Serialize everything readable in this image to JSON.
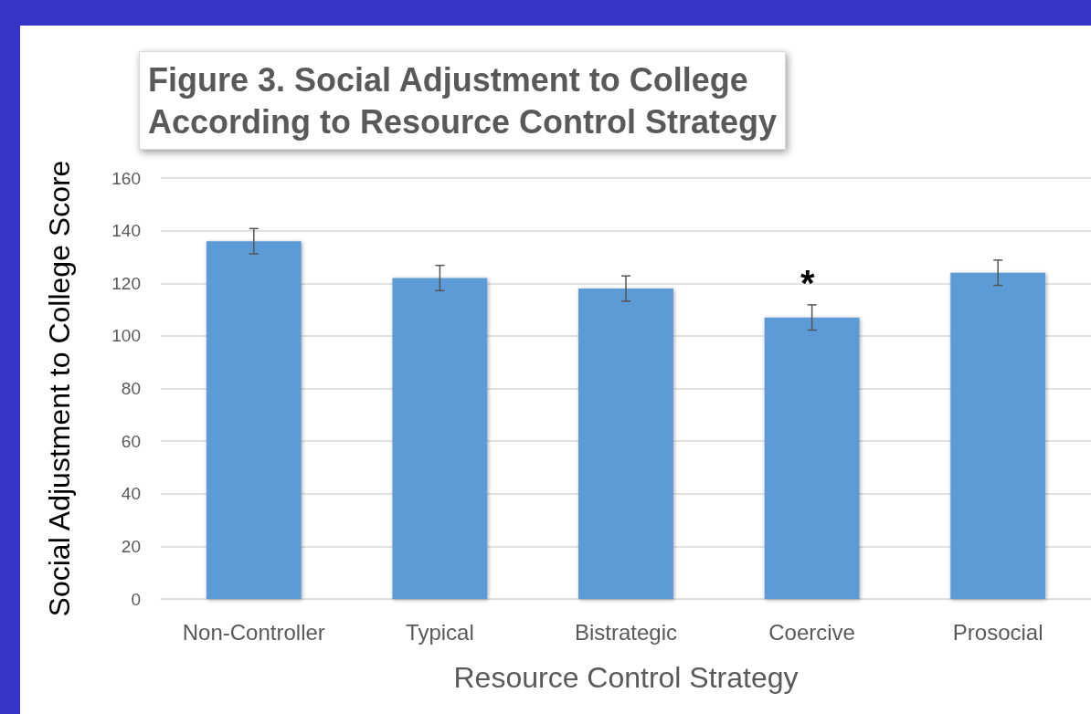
{
  "chart_data": {
    "type": "bar",
    "title": "Figure 3. Social Adjustment to College\nAccording to Resource Control Strategy",
    "xlabel": "Resource Control Strategy",
    "ylabel": "Social Adjustment to College Score",
    "categories": [
      "Non-Controller",
      "Typical",
      "Bistrategic",
      "Coercive",
      "Prosocial"
    ],
    "values": [
      136,
      122,
      118,
      107,
      124
    ],
    "errors": [
      4.8,
      4.8,
      4.8,
      4.8,
      4.8
    ],
    "color": "#5b9bd5",
    "ylim": [
      0,
      160
    ],
    "yticks": [
      0,
      20,
      40,
      60,
      80,
      100,
      120,
      140,
      160
    ],
    "grid": "y",
    "annotations": [
      "*"
    ]
  }
}
